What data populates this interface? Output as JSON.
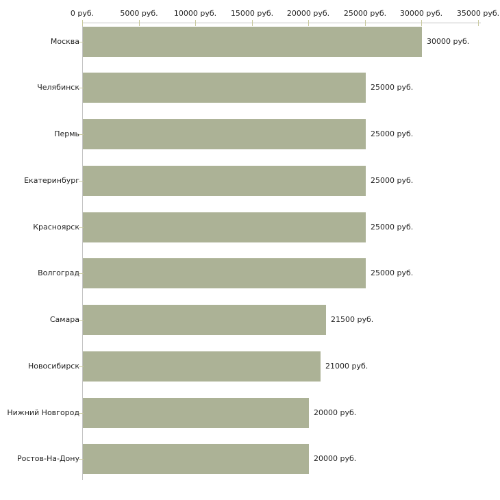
{
  "chart_data": {
    "type": "bar",
    "orientation": "horizontal",
    "title": "",
    "unit": "руб.",
    "categories": [
      "Москва",
      "Челябинск",
      "Пермь",
      "Екатеринбург",
      "Красноярск",
      "Волгоград",
      "Самара",
      "Новосибирск",
      "Нижний Новгород",
      "Ростов-На-Дону"
    ],
    "values": [
      30000,
      25000,
      25000,
      25000,
      25000,
      25000,
      21500,
      21000,
      20000,
      20000
    ],
    "value_labels": [
      "30000 руб.",
      "25000 руб.",
      "25000 руб.",
      "25000 руб.",
      "25000 руб.",
      "25000 руб.",
      "21500 руб.",
      "21000 руб.",
      "20000 руб.",
      "20000 руб."
    ],
    "x_axis": {
      "position": "top",
      "lim": [
        0,
        35000
      ],
      "ticks": [
        {
          "value": 0,
          "label": "0 руб."
        },
        {
          "value": 5000,
          "label": "5000 руб."
        },
        {
          "value": 10000,
          "label": "10000 руб."
        },
        {
          "value": 15000,
          "label": "15000 руб."
        },
        {
          "value": 20000,
          "label": "20000 руб."
        },
        {
          "value": 25000,
          "label": "25000 руб."
        },
        {
          "value": 30000,
          "label": "30000 руб."
        },
        {
          "value": 35000,
          "label": "35000 руб."
        }
      ]
    },
    "grid": false,
    "colors": {
      "bar": "#acb296",
      "axis_line": "#c2c2c2",
      "tick": "#c8c89c",
      "text": "#1f1f1f",
      "background": "#ffffff"
    }
  }
}
